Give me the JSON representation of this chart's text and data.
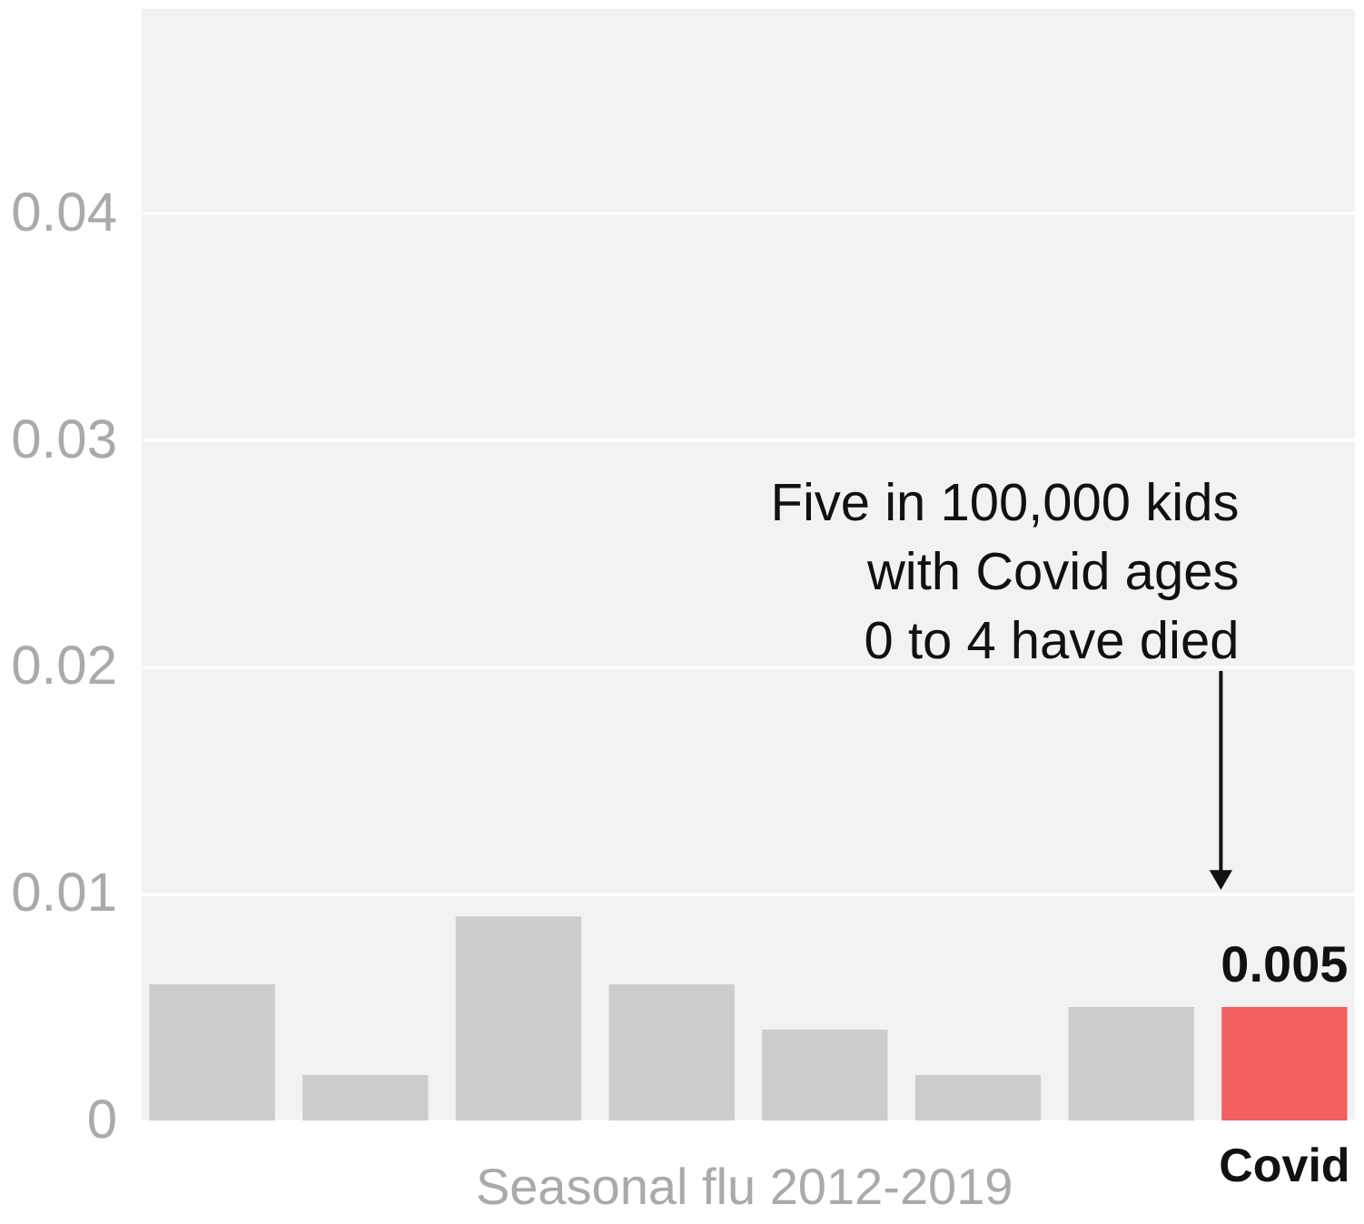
{
  "chart_data": {
    "type": "bar",
    "categories": [
      null,
      null,
      null,
      null,
      null,
      null,
      null,
      "Covid"
    ],
    "values": [
      0.006,
      0.002,
      0.009,
      0.006,
      0.004,
      0.002,
      0.005,
      0.005
    ],
    "colors": [
      "#cccccc",
      "#cccccc",
      "#cccccc",
      "#cccccc",
      "#cccccc",
      "#cccccc",
      "#cccccc",
      "#f45f5f"
    ],
    "value_labels": [
      null,
      null,
      null,
      null,
      null,
      null,
      null,
      "0.005"
    ],
    "ylim": [
      0,
      0.049
    ],
    "yticks": [
      0,
      0.01,
      0.02,
      0.03,
      0.04
    ],
    "grid": "y",
    "annotations": [
      "Five in 100,000 kids\nwith Covid ages\n0 to 4 have died",
      "Seasonal flu 2012-2019"
    ]
  }
}
